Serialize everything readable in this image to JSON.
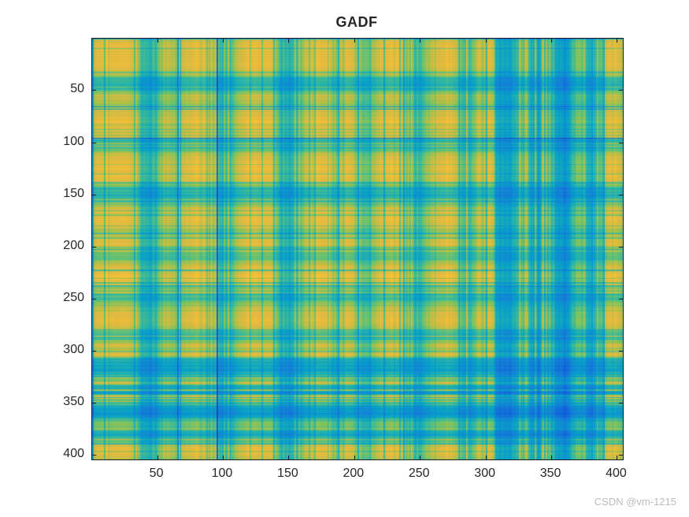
{
  "figure": {
    "title": "GADF",
    "background": "#ffffff",
    "axis_color": "#262626",
    "title_color": "#262626"
  },
  "watermark": {
    "text": "CSDN @vm-1215",
    "color": "#b9bdc0"
  },
  "chart_data": {
    "type": "heatmap",
    "title": "GADF",
    "xlabel": "",
    "ylabel": "",
    "x_ticks": [
      50,
      100,
      150,
      200,
      250,
      300,
      350,
      400
    ],
    "y_ticks": [
      50,
      100,
      150,
      200,
      250,
      300,
      350,
      400
    ],
    "x_range": [
      0.5,
      404.5
    ],
    "y_range": [
      0.5,
      404.5
    ],
    "n_points": 404,
    "grid": false,
    "legend": "none",
    "value_model": "cell(i,j) = sqrt(p_i * p_j) mapped through parula colormap; p is the per-index profile below plus seeded noise",
    "profile_control_points": [
      [
        1,
        0.66
      ],
      [
        6,
        0.8
      ],
      [
        14,
        0.84
      ],
      [
        20,
        0.78
      ],
      [
        26,
        0.82
      ],
      [
        34,
        0.72
      ],
      [
        38,
        0.34
      ],
      [
        44,
        0.26
      ],
      [
        50,
        0.32
      ],
      [
        54,
        0.68
      ],
      [
        60,
        0.62
      ],
      [
        66,
        0.52
      ],
      [
        72,
        0.74
      ],
      [
        80,
        0.82
      ],
      [
        90,
        0.78
      ],
      [
        95,
        0.62
      ],
      [
        98,
        0.3
      ],
      [
        106,
        0.33
      ],
      [
        112,
        0.7
      ],
      [
        120,
        0.86
      ],
      [
        130,
        0.84
      ],
      [
        138,
        0.76
      ],
      [
        144,
        0.32
      ],
      [
        152,
        0.28
      ],
      [
        158,
        0.38
      ],
      [
        164,
        0.7
      ],
      [
        172,
        0.84
      ],
      [
        180,
        0.8
      ],
      [
        184,
        0.58
      ],
      [
        190,
        0.64
      ],
      [
        196,
        0.84
      ],
      [
        202,
        0.62
      ],
      [
        207,
        0.44
      ],
      [
        212,
        0.46
      ],
      [
        218,
        0.72
      ],
      [
        226,
        0.86
      ],
      [
        234,
        0.8
      ],
      [
        240,
        0.62
      ],
      [
        244,
        0.3
      ],
      [
        250,
        0.3
      ],
      [
        256,
        0.56
      ],
      [
        262,
        0.76
      ],
      [
        270,
        0.84
      ],
      [
        278,
        0.74
      ],
      [
        283,
        0.38
      ],
      [
        288,
        0.3
      ],
      [
        293,
        0.62
      ],
      [
        296,
        0.78
      ],
      [
        299,
        0.4
      ],
      [
        302,
        0.8
      ],
      [
        305,
        0.76
      ],
      [
        308,
        0.26
      ],
      [
        312,
        0.18
      ],
      [
        318,
        0.2
      ],
      [
        324,
        0.3
      ],
      [
        328,
        0.42
      ],
      [
        331,
        0.66
      ],
      [
        334,
        0.26
      ],
      [
        338,
        0.18
      ],
      [
        342,
        0.22
      ],
      [
        347,
        0.44
      ],
      [
        350,
        0.28
      ],
      [
        354,
        0.2
      ],
      [
        358,
        0.14
      ],
      [
        363,
        0.18
      ],
      [
        368,
        0.4
      ],
      [
        372,
        0.52
      ],
      [
        376,
        0.3
      ],
      [
        380,
        0.22
      ],
      [
        384,
        0.3
      ],
      [
        388,
        0.52
      ],
      [
        391,
        0.72
      ],
      [
        394,
        0.8
      ],
      [
        398,
        0.84
      ],
      [
        401,
        0.72
      ],
      [
        404,
        0.62
      ]
    ],
    "noise": {
      "seed": 7,
      "jitter": 0.13,
      "spike_prob": 0.13,
      "spike_min": 0.15,
      "spike_max": 0.45,
      "clip": [
        0.03,
        0.97
      ]
    },
    "colormap": "parula",
    "colormap_stops": [
      [
        0.0,
        "#352a87"
      ],
      [
        0.12,
        "#0f5cdd"
      ],
      [
        0.22,
        "#1481d6"
      ],
      [
        0.35,
        "#06a0c9"
      ],
      [
        0.5,
        "#33b8a1"
      ],
      [
        0.62,
        "#7dc45e"
      ],
      [
        0.72,
        "#c1bd44"
      ],
      [
        0.82,
        "#eaba3f"
      ],
      [
        0.92,
        "#fbcc25"
      ],
      [
        1.0,
        "#f9fb0e"
      ]
    ]
  }
}
